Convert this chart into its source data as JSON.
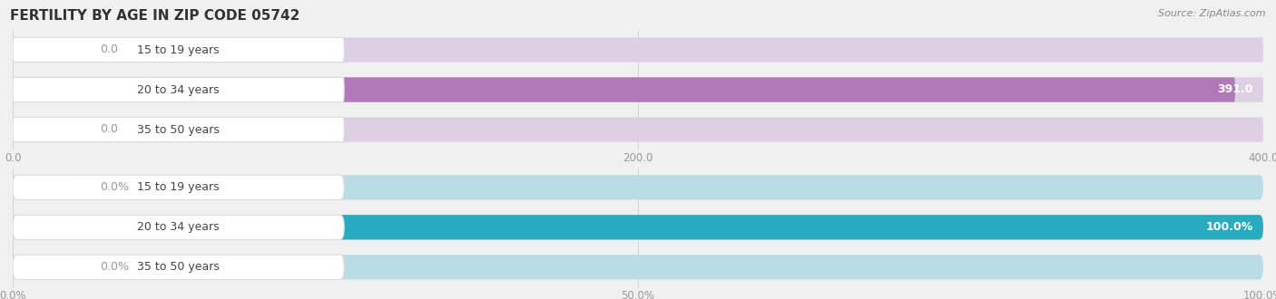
{
  "title": "FERTILITY BY AGE IN ZIP CODE 05742",
  "source": "Source: ZipAtlas.com",
  "top_chart": {
    "categories": [
      "15 to 19 years",
      "20 to 34 years",
      "35 to 50 years"
    ],
    "values": [
      0.0,
      391.0,
      0.0
    ],
    "xlim": [
      0,
      400.0
    ],
    "xticks": [
      0.0,
      200.0,
      400.0
    ],
    "xtick_labels": [
      "0.0",
      "200.0",
      "400.0"
    ],
    "bar_color": "#b078b8",
    "bar_bg_color": "#ddd0e4",
    "bar_height": 0.62
  },
  "bottom_chart": {
    "categories": [
      "15 to 19 years",
      "20 to 34 years",
      "35 to 50 years"
    ],
    "values": [
      0.0,
      100.0,
      0.0
    ],
    "xlim": [
      0,
      100.0
    ],
    "xticks": [
      0.0,
      50.0,
      100.0
    ],
    "xtick_labels": [
      "0.0%",
      "50.0%",
      "100.0%"
    ],
    "bar_color": "#2aaabe",
    "bar_bg_color": "#b8dde4",
    "bar_height": 0.62
  },
  "bg_color": "#f0f0f0",
  "title_fontsize": 11,
  "source_fontsize": 8,
  "label_fontsize": 9,
  "value_fontsize": 9,
  "tick_fontsize": 8.5
}
